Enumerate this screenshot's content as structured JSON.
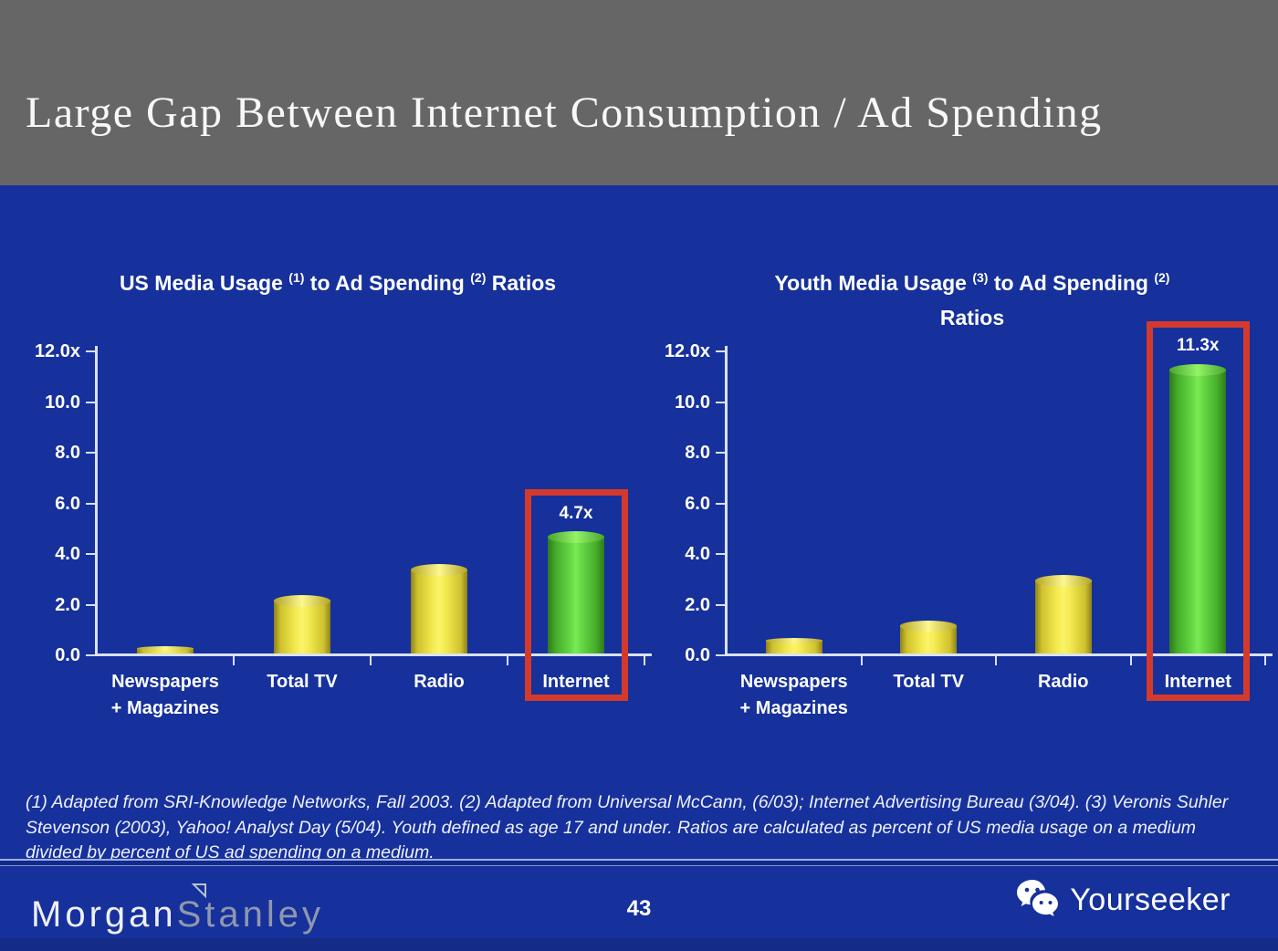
{
  "slide": {
    "title": "Large Gap Between Internet Consumption / Ad Spending",
    "page_number": "43",
    "footnote": "(1) Adapted from SRI-Knowledge Networks, Fall 2003.  (2) Adapted from Universal McCann, (6/03); Internet Advertising Bureau (3/04). (3) Veronis Suhler Stevenson (2003), Yahoo! Analyst Day (5/04).  Youth defined as age 17 and under.  Ratios are calculated as percent of US media usage on a medium divided by percent of US ad spending on a medium.",
    "brand": {
      "morgan": "Morgan",
      "stanley": "Stanley"
    },
    "watermark": {
      "icon": "wechat-icon",
      "label": "Yourseeker"
    }
  },
  "colors": {
    "header_gray": "#666666",
    "background_blue": "#16309c",
    "bar_yellow": "#f3e94f",
    "bar_green": "#66d844",
    "highlight_red": "#d43a2c",
    "axis_line": "#d9e1f8",
    "text_white": "#ffffff"
  },
  "chart_data": [
    {
      "type": "bar",
      "title": "US Media Usage (1) to Ad Spending (2) Ratios",
      "title_parts": [
        {
          "text": "US Media Usage "
        },
        {
          "sup": "(1)"
        },
        {
          "text": " to Ad Spending "
        },
        {
          "sup": "(2)"
        },
        {
          "text": " Ratios"
        }
      ],
      "xlabel": "",
      "ylabel": "",
      "ylim": [
        0,
        12
      ],
      "grid": false,
      "legend": null,
      "y_ticks": [
        {
          "label": "12.0x",
          "value": 12
        },
        {
          "label": "10.0",
          "value": 10
        },
        {
          "label": "8.0",
          "value": 8
        },
        {
          "label": "6.0",
          "value": 6
        },
        {
          "label": "4.0",
          "value": 4
        },
        {
          "label": "2.0",
          "value": 2
        },
        {
          "label": "0.0",
          "value": 0
        }
      ],
      "categories": [
        "Newspapers + Magazines",
        "Total TV",
        "Radio",
        "Internet"
      ],
      "category_lines": [
        [
          "Newspapers",
          "+ Magazines"
        ],
        [
          "Total TV"
        ],
        [
          "Radio"
        ],
        [
          "Internet"
        ]
      ],
      "values": [
        0.3,
        2.2,
        3.4,
        4.7
      ],
      "bar_colors": [
        "yellow",
        "yellow",
        "yellow",
        "green"
      ],
      "annotations": [
        {
          "index": 3,
          "label": "4.7x"
        }
      ],
      "highlight_index": 3
    },
    {
      "type": "bar",
      "title": "Youth Media Usage (3) to Ad Spending (2) Ratios",
      "title_parts": [
        {
          "text": "Youth Media Usage "
        },
        {
          "sup": "(3)"
        },
        {
          "text": " to Ad Spending "
        },
        {
          "sup": "(2)"
        },
        {
          "br": true
        },
        {
          "text": "Ratios"
        }
      ],
      "xlabel": "",
      "ylabel": "",
      "ylim": [
        0,
        12
      ],
      "grid": false,
      "legend": null,
      "y_ticks": [
        {
          "label": "12.0x",
          "value": 12
        },
        {
          "label": "10.0",
          "value": 10
        },
        {
          "label": "8.0",
          "value": 8
        },
        {
          "label": "6.0",
          "value": 6
        },
        {
          "label": "4.0",
          "value": 4
        },
        {
          "label": "2.0",
          "value": 2
        },
        {
          "label": "0.0",
          "value": 0
        }
      ],
      "categories": [
        "Newspapers + Magazines",
        "Total TV",
        "Radio",
        "Internet"
      ],
      "category_lines": [
        [
          "Newspapers",
          "+ Magazines"
        ],
        [
          "Total TV"
        ],
        [
          "Radio"
        ],
        [
          "Internet"
        ]
      ],
      "values": [
        0.6,
        1.2,
        3.0,
        11.3
      ],
      "bar_colors": [
        "yellow",
        "yellow",
        "yellow",
        "green"
      ],
      "annotations": [
        {
          "index": 3,
          "label": "11.3x"
        }
      ],
      "highlight_index": 3
    }
  ]
}
